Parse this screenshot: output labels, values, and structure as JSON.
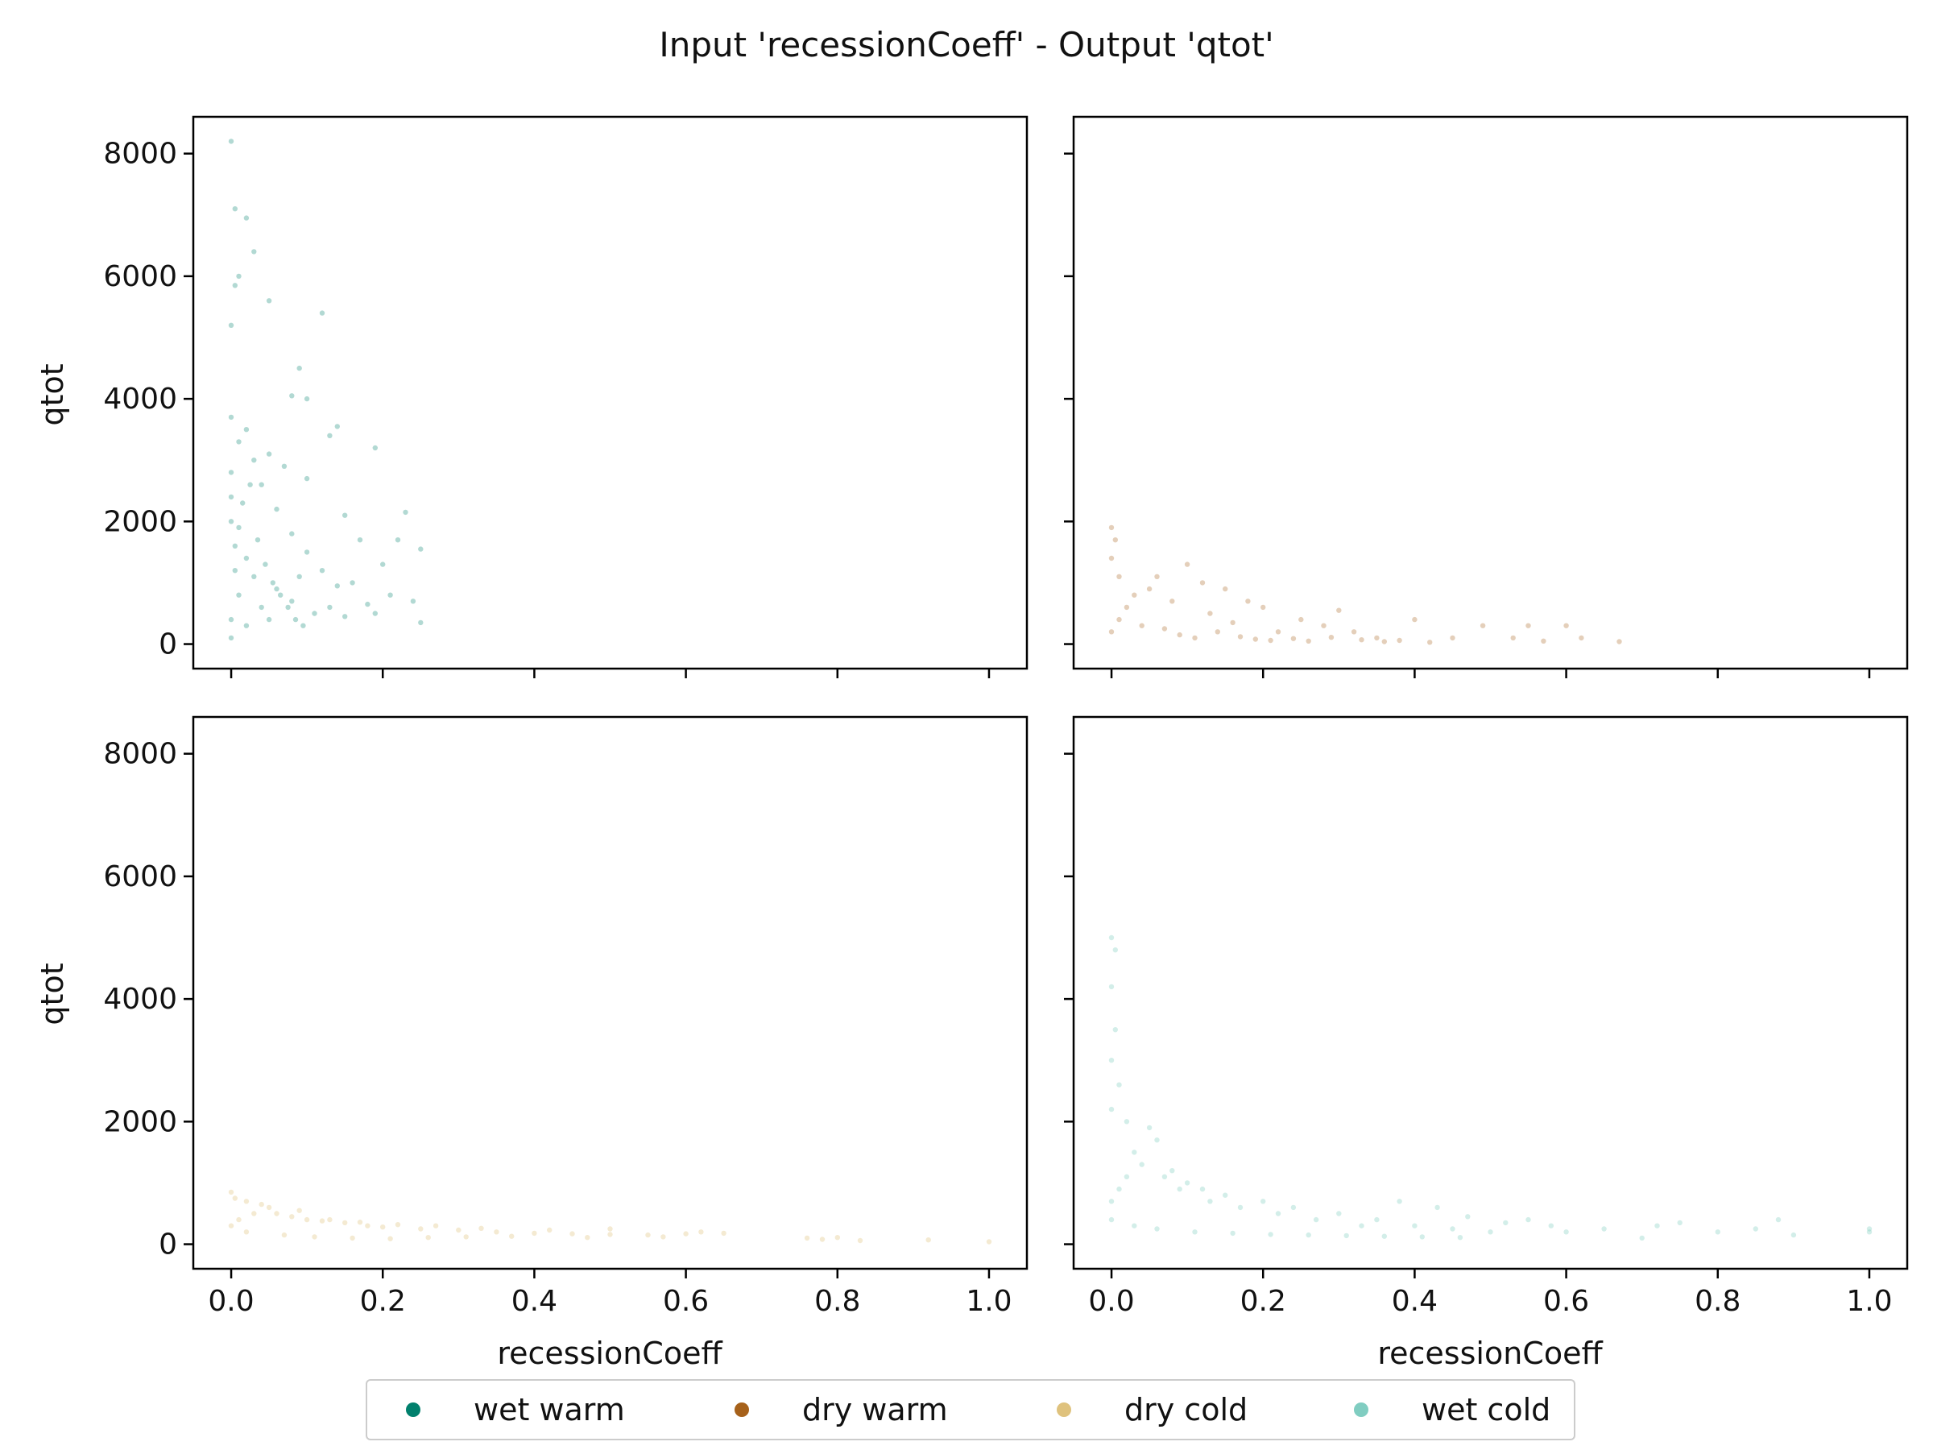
{
  "chart_data": {
    "type": "scatter",
    "title": "Input 'recessionCoeff' - Output 'qtot'",
    "xlabel": "recessionCoeff",
    "ylabel": "qtot",
    "xlim": [
      -0.05,
      1.05
    ],
    "ylim": [
      -400,
      8600
    ],
    "xticks": [
      0.0,
      0.2,
      0.4,
      0.6,
      0.8,
      1.0
    ],
    "yticks": [
      0,
      2000,
      4000,
      6000,
      8000
    ],
    "x_tick_labels": [
      "0.0",
      "0.2",
      "0.4",
      "0.6",
      "0.8",
      "1.0"
    ],
    "y_tick_labels": [
      "0",
      "2000",
      "4000",
      "6000",
      "8000"
    ],
    "grid": false,
    "legend_position": "bottom-center",
    "shared_axes": true,
    "panels": [
      {
        "series": "wet warm",
        "color": "#01806d",
        "alpha": 0.3,
        "points": [
          [
            0.0,
            8200
          ],
          [
            0.005,
            7100
          ],
          [
            0.02,
            6950
          ],
          [
            0.03,
            6400
          ],
          [
            0.01,
            6000
          ],
          [
            0.005,
            5850
          ],
          [
            0.05,
            5600
          ],
          [
            0.12,
            5400
          ],
          [
            0.0,
            5200
          ],
          [
            0.09,
            4500
          ],
          [
            0.1,
            4000
          ],
          [
            0.08,
            4050
          ],
          [
            0.14,
            3550
          ],
          [
            0.13,
            3400
          ],
          [
            0.19,
            3200
          ],
          [
            0.0,
            3700
          ],
          [
            0.02,
            3500
          ],
          [
            0.05,
            3100
          ],
          [
            0.07,
            2900
          ],
          [
            0.1,
            2700
          ],
          [
            0.15,
            2100
          ],
          [
            0.17,
            1700
          ],
          [
            0.22,
            1700
          ],
          [
            0.23,
            2150
          ],
          [
            0.25,
            1550
          ],
          [
            0.2,
            1300
          ],
          [
            0.21,
            800
          ],
          [
            0.24,
            700
          ],
          [
            0.25,
            350
          ],
          [
            0.19,
            500
          ],
          [
            0.14,
            950
          ],
          [
            0.16,
            1000
          ],
          [
            0.12,
            1200
          ],
          [
            0.1,
            1500
          ],
          [
            0.08,
            1800
          ],
          [
            0.06,
            2200
          ],
          [
            0.04,
            2600
          ],
          [
            0.03,
            3000
          ],
          [
            0.01,
            3300
          ],
          [
            0.0,
            2800
          ],
          [
            0.0,
            2400
          ],
          [
            0.0,
            2000
          ],
          [
            0.005,
            1600
          ],
          [
            0.005,
            1200
          ],
          [
            0.01,
            800
          ],
          [
            0.0,
            400
          ],
          [
            0.0,
            100
          ],
          [
            0.02,
            300
          ],
          [
            0.04,
            600
          ],
          [
            0.06,
            900
          ],
          [
            0.08,
            700
          ],
          [
            0.11,
            500
          ],
          [
            0.13,
            600
          ],
          [
            0.05,
            400
          ],
          [
            0.03,
            1100
          ],
          [
            0.02,
            1400
          ],
          [
            0.01,
            1900
          ],
          [
            0.015,
            2300
          ],
          [
            0.025,
            2600
          ],
          [
            0.035,
            1700
          ],
          [
            0.045,
            1300
          ],
          [
            0.055,
            1000
          ],
          [
            0.065,
            800
          ],
          [
            0.075,
            600
          ],
          [
            0.085,
            400
          ],
          [
            0.095,
            300
          ],
          [
            0.18,
            650
          ],
          [
            0.15,
            450
          ],
          [
            0.09,
            1100
          ]
        ]
      },
      {
        "series": "dry warm",
        "color": "#a6611a",
        "alpha": 0.3,
        "points": [
          [
            0.0,
            1900
          ],
          [
            0.005,
            1700
          ],
          [
            0.0,
            1400
          ],
          [
            0.01,
            1100
          ],
          [
            0.06,
            1100
          ],
          [
            0.1,
            1300
          ],
          [
            0.12,
            1000
          ],
          [
            0.15,
            900
          ],
          [
            0.18,
            700
          ],
          [
            0.2,
            600
          ],
          [
            0.25,
            400
          ],
          [
            0.3,
            550
          ],
          [
            0.28,
            300
          ],
          [
            0.32,
            200
          ],
          [
            0.35,
            100
          ],
          [
            0.4,
            400
          ],
          [
            0.45,
            100
          ],
          [
            0.49,
            300
          ],
          [
            0.53,
            100
          ],
          [
            0.55,
            300
          ],
          [
            0.57,
            50
          ],
          [
            0.6,
            300
          ],
          [
            0.62,
            100
          ],
          [
            0.67,
            40
          ],
          [
            0.38,
            60
          ],
          [
            0.42,
            30
          ],
          [
            0.22,
            200
          ],
          [
            0.16,
            350
          ],
          [
            0.13,
            500
          ],
          [
            0.08,
            700
          ],
          [
            0.05,
            900
          ],
          [
            0.03,
            800
          ],
          [
            0.02,
            600
          ],
          [
            0.01,
            400
          ],
          [
            0.0,
            200
          ],
          [
            0.04,
            300
          ],
          [
            0.07,
            250
          ],
          [
            0.09,
            150
          ],
          [
            0.11,
            100
          ],
          [
            0.14,
            200
          ],
          [
            0.17,
            120
          ],
          [
            0.19,
            80
          ],
          [
            0.21,
            60
          ],
          [
            0.24,
            90
          ],
          [
            0.26,
            50
          ],
          [
            0.29,
            110
          ],
          [
            0.33,
            70
          ],
          [
            0.36,
            40
          ]
        ]
      },
      {
        "series": "dry cold",
        "color": "#dfc27d",
        "alpha": 0.35,
        "points": [
          [
            0.0,
            850
          ],
          [
            0.005,
            750
          ],
          [
            0.02,
            700
          ],
          [
            0.04,
            650
          ],
          [
            0.06,
            500
          ],
          [
            0.08,
            450
          ],
          [
            0.1,
            400
          ],
          [
            0.12,
            380
          ],
          [
            0.15,
            350
          ],
          [
            0.18,
            300
          ],
          [
            0.2,
            280
          ],
          [
            0.25,
            250
          ],
          [
            0.3,
            230
          ],
          [
            0.35,
            200
          ],
          [
            0.4,
            180
          ],
          [
            0.45,
            170
          ],
          [
            0.5,
            160
          ],
          [
            0.55,
            150
          ],
          [
            0.6,
            170
          ],
          [
            0.62,
            200
          ],
          [
            0.65,
            180
          ],
          [
            0.76,
            100
          ],
          [
            0.78,
            80
          ],
          [
            0.8,
            110
          ],
          [
            0.83,
            60
          ],
          [
            0.92,
            70
          ],
          [
            1.0,
            40
          ],
          [
            0.5,
            250
          ],
          [
            0.42,
            230
          ],
          [
            0.33,
            260
          ],
          [
            0.27,
            300
          ],
          [
            0.22,
            320
          ],
          [
            0.17,
            360
          ],
          [
            0.13,
            400
          ],
          [
            0.09,
            550
          ],
          [
            0.05,
            600
          ],
          [
            0.03,
            500
          ],
          [
            0.01,
            400
          ],
          [
            0.0,
            300
          ],
          [
            0.02,
            200
          ],
          [
            0.07,
            150
          ],
          [
            0.11,
            120
          ],
          [
            0.16,
            100
          ],
          [
            0.21,
            90
          ],
          [
            0.26,
            110
          ],
          [
            0.31,
            120
          ],
          [
            0.37,
            130
          ],
          [
            0.47,
            110
          ],
          [
            0.57,
            120
          ]
        ]
      },
      {
        "series": "wet cold",
        "color": "#80cdc1",
        "alpha": 0.35,
        "points": [
          [
            0.0,
            5000
          ],
          [
            0.005,
            4800
          ],
          [
            0.0,
            4200
          ],
          [
            0.005,
            3500
          ],
          [
            0.0,
            3000
          ],
          [
            0.01,
            2600
          ],
          [
            0.0,
            2200
          ],
          [
            0.02,
            2000
          ],
          [
            0.05,
            1900
          ],
          [
            0.06,
            1700
          ],
          [
            0.03,
            1500
          ],
          [
            0.08,
            1200
          ],
          [
            0.1,
            1000
          ],
          [
            0.12,
            900
          ],
          [
            0.15,
            800
          ],
          [
            0.2,
            700
          ],
          [
            0.24,
            600
          ],
          [
            0.3,
            500
          ],
          [
            0.35,
            400
          ],
          [
            0.38,
            700
          ],
          [
            0.4,
            300
          ],
          [
            0.43,
            600
          ],
          [
            0.45,
            250
          ],
          [
            0.5,
            200
          ],
          [
            0.55,
            400
          ],
          [
            0.58,
            300
          ],
          [
            0.6,
            200
          ],
          [
            0.65,
            250
          ],
          [
            0.7,
            100
          ],
          [
            0.72,
            300
          ],
          [
            0.75,
            350
          ],
          [
            0.8,
            200
          ],
          [
            0.85,
            250
          ],
          [
            0.88,
            400
          ],
          [
            0.9,
            150
          ],
          [
            1.0,
            250
          ],
          [
            1.0,
            200
          ],
          [
            0.52,
            350
          ],
          [
            0.47,
            450
          ],
          [
            0.33,
            300
          ],
          [
            0.27,
            400
          ],
          [
            0.22,
            500
          ],
          [
            0.17,
            600
          ],
          [
            0.13,
            700
          ],
          [
            0.09,
            900
          ],
          [
            0.07,
            1100
          ],
          [
            0.04,
            1300
          ],
          [
            0.02,
            1100
          ],
          [
            0.01,
            900
          ],
          [
            0.0,
            700
          ],
          [
            0.0,
            400
          ],
          [
            0.03,
            300
          ],
          [
            0.06,
            250
          ],
          [
            0.11,
            200
          ],
          [
            0.16,
            180
          ],
          [
            0.21,
            160
          ],
          [
            0.26,
            150
          ],
          [
            0.31,
            140
          ],
          [
            0.36,
            130
          ],
          [
            0.41,
            120
          ],
          [
            0.46,
            110
          ]
        ]
      }
    ],
    "legend": [
      {
        "label": "wet warm",
        "color": "#01806d"
      },
      {
        "label": "dry warm",
        "color": "#a6611a"
      },
      {
        "label": "dry cold",
        "color": "#dfc27d"
      },
      {
        "label": "wet cold",
        "color": "#80cdc1"
      }
    ]
  }
}
